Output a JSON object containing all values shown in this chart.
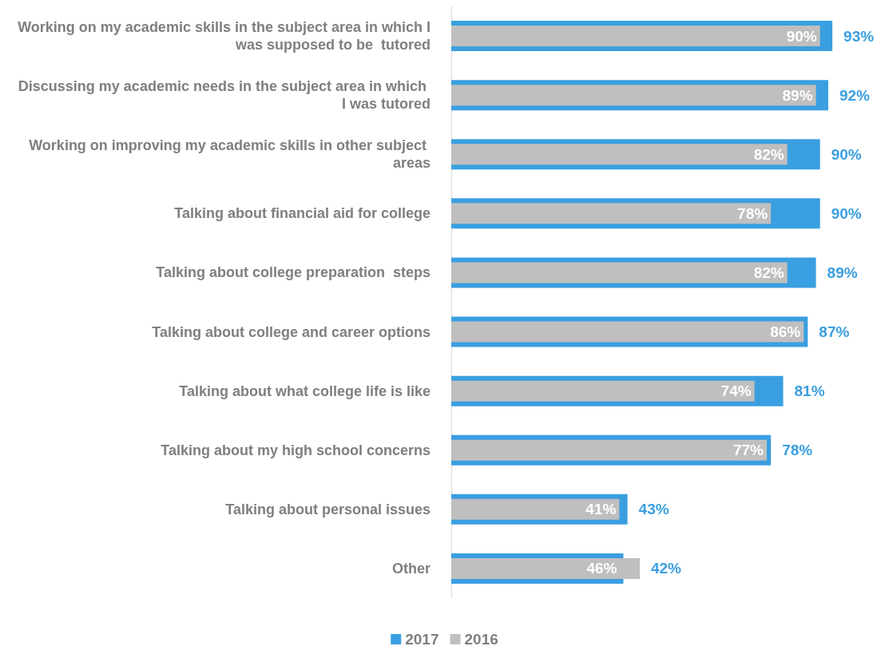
{
  "chart_data": {
    "type": "bar",
    "orientation": "horizontal",
    "categories": [
      "Working on my academic skills in the subject area in which I was supposed to be  tutored",
      "Discussing my academic needs in the subject area in which I was tutored",
      "Working on improving my academic skills in other subject areas",
      "Talking about financial aid for college",
      "Talking about college preparation  steps",
      "Talking about college and career options",
      "Talking about what college life is like",
      "Talking about my high school concerns",
      "Talking about personal issues",
      "Other"
    ],
    "series": [
      {
        "name": "2017",
        "color": "#3a9fe0",
        "values": [
          93,
          92,
          90,
          90,
          89,
          87,
          81,
          78,
          43,
          42
        ],
        "value_labels": [
          "93%",
          "92%",
          "90%",
          "90%",
          "89%",
          "87%",
          "81%",
          "78%",
          "43%",
          "42%"
        ]
      },
      {
        "name": "2016",
        "color": "#bfbfbf",
        "values": [
          90,
          89,
          82,
          78,
          82,
          86,
          74,
          77,
          41,
          46
        ],
        "value_labels": [
          "90%",
          "89%",
          "82%",
          "78%",
          "82%",
          "86%",
          "74%",
          "77%",
          "41%",
          "46%"
        ]
      }
    ],
    "legend": "bottom"
  }
}
